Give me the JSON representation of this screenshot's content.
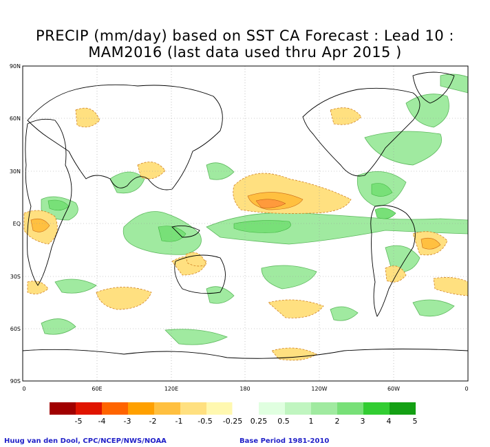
{
  "title": {
    "line1": "PRECIP (mm/day) based on SST CA Forecast : Lead 10 :",
    "line2": "MAM2016 (last data used thru Apr 2015 )"
  },
  "map": {
    "lat_labels": [
      "90N",
      "60N",
      "30N",
      "EQ",
      "30S",
      "60S",
      "90S"
    ],
    "lon_labels": [
      "0",
      "60E",
      "120E",
      "180",
      "120W",
      "60W",
      "0"
    ]
  },
  "legend": {
    "breaks": [
      "-5",
      "-4",
      "-3",
      "-2",
      "-1",
      "-0.5",
      "-0.25",
      "0.25",
      "0.5",
      "1",
      "2",
      "3",
      "4",
      "5"
    ],
    "colors": [
      "#a00000",
      "#e01400",
      "#ff6400",
      "#ffa000",
      "#ffc040",
      "#ffe080",
      "#fff8b0",
      "#ffffff",
      "#e0ffe0",
      "#c0f5c0",
      "#a0eaa0",
      "#78e078",
      "#32cd32",
      "#14a014"
    ]
  },
  "footer": {
    "credit": "Huug van den Dool, CPC/NCEP/NWS/NOAA",
    "base_period": "Base Period 1981-2010"
  }
}
